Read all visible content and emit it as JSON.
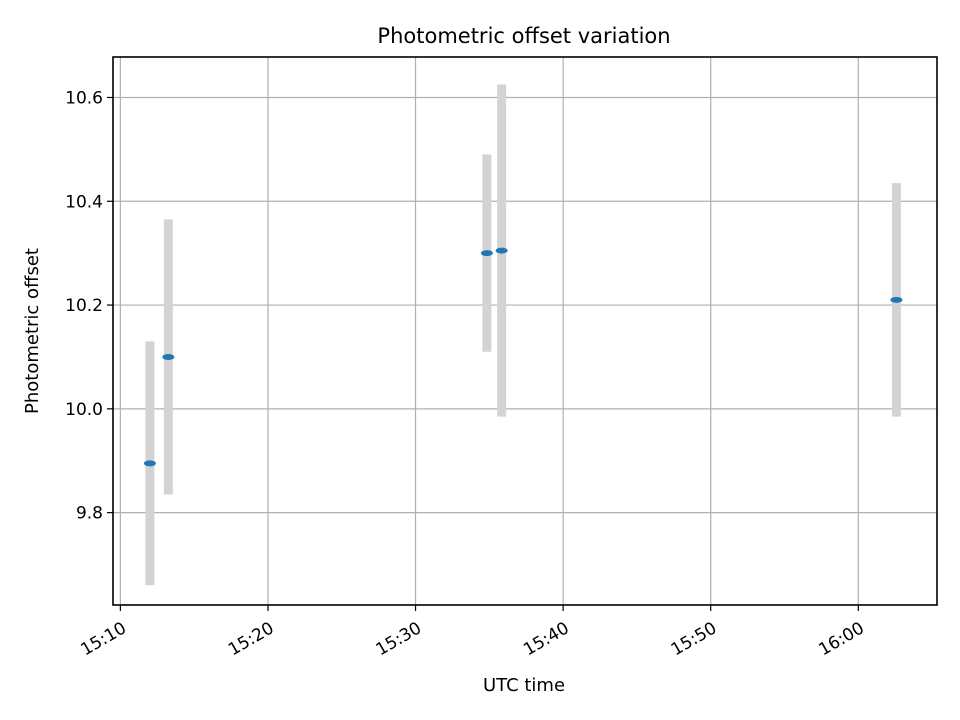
{
  "chart_data": {
    "type": "scatter",
    "title": "Photometric offset variation",
    "xlabel": "UTC time",
    "ylabel": "Photometric offset",
    "grid": true,
    "xlim": [
      "15:09:30",
      "16:05:20"
    ],
    "ylim": [
      9.622,
      10.678
    ],
    "x_ticks": [
      "15:10",
      "15:20",
      "15:30",
      "15:40",
      "15:50",
      "16:00"
    ],
    "y_ticks": [
      9.8,
      10.0,
      10.2,
      10.4,
      10.6
    ],
    "series": [
      {
        "points": [
          {
            "x": "15:12:00",
            "y": 9.895,
            "y_low": 9.66,
            "y_high": 10.13
          },
          {
            "x": "15:13:15",
            "y": 10.1,
            "y_low": 9.835,
            "y_high": 10.365
          },
          {
            "x": "15:34:50",
            "y": 10.3,
            "y_low": 10.11,
            "y_high": 10.49
          },
          {
            "x": "15:35:50",
            "y": 10.305,
            "y_low": 9.985,
            "y_high": 10.625
          },
          {
            "x": "16:02:35",
            "y": 10.21,
            "y_low": 9.985,
            "y_high": 10.435
          }
        ]
      }
    ],
    "colors": {
      "marker": "#1f77b4",
      "errorbar": "#d3d3d3",
      "grid": "#b0b0b0"
    }
  }
}
